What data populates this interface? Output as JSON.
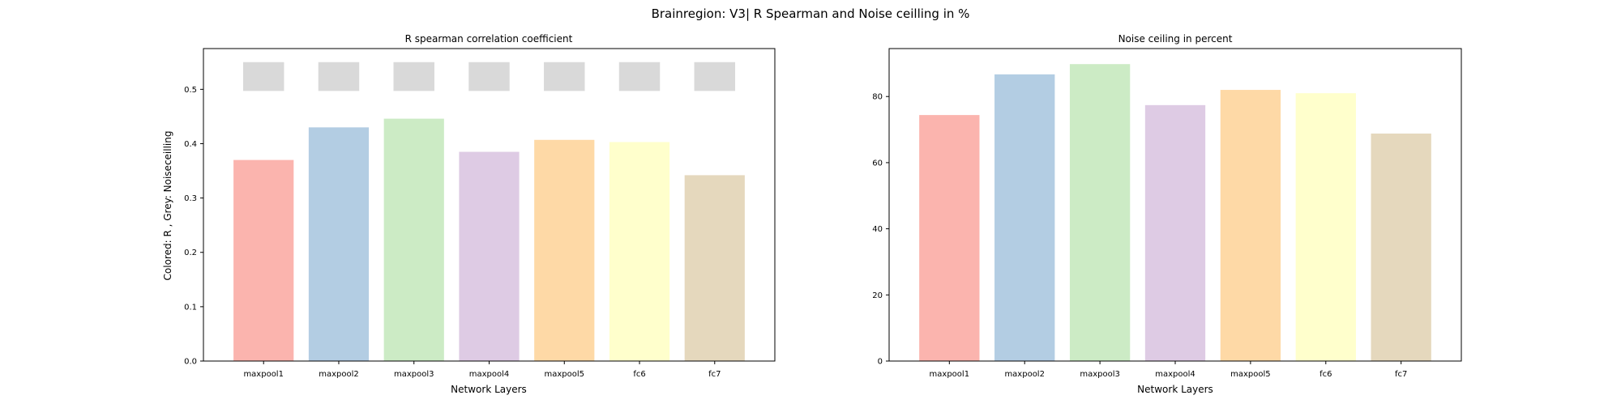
{
  "figure": {
    "suptitle": "Brainregion: V3| R Spearman and Noise ceilling in %"
  },
  "colors": [
    "#fbb4ae",
    "#b3cde3",
    "#ccebc5",
    "#decbe4",
    "#fed9a6",
    "#ffffcc",
    "#e5d8bd"
  ],
  "noise_color": "#d9d9d9",
  "chart_data": [
    {
      "type": "bar",
      "title": "R spearman correlation coefficient",
      "xlabel": "Network Layers",
      "ylabel": "Colored: R , Grey: Noiseceilling",
      "categories": [
        "maxpool1",
        "maxpool2",
        "maxpool3",
        "maxpool4",
        "maxpool5",
        "fc6",
        "fc7"
      ],
      "values": [
        0.37,
        0.43,
        0.446,
        0.385,
        0.407,
        0.403,
        0.342
      ],
      "noise_ceiling": {
        "lower": [
          0.497,
          0.497,
          0.497,
          0.497,
          0.497,
          0.497,
          0.497
        ],
        "upper": [
          0.55,
          0.55,
          0.55,
          0.55,
          0.55,
          0.55,
          0.55
        ]
      },
      "ylim": [
        0,
        0.575
      ],
      "yticks": [
        0.0,
        0.1,
        0.2,
        0.3,
        0.4,
        0.5
      ],
      "ytick_labels": [
        "0.0",
        "0.1",
        "0.2",
        "0.3",
        "0.4",
        "0.5"
      ],
      "grid": false
    },
    {
      "type": "bar",
      "title": "Noise ceiling in percent",
      "xlabel": "Network Layers",
      "ylabel": "",
      "categories": [
        "maxpool1",
        "maxpool2",
        "maxpool3",
        "maxpool4",
        "maxpool5",
        "fc6",
        "fc7"
      ],
      "values": [
        74.4,
        86.7,
        89.8,
        77.4,
        82.0,
        81.0,
        68.8
      ],
      "ylim": [
        0,
        94.5
      ],
      "yticks": [
        0,
        20,
        40,
        60,
        80
      ],
      "ytick_labels": [
        "0",
        "20",
        "40",
        "60",
        "80"
      ],
      "grid": false
    }
  ]
}
